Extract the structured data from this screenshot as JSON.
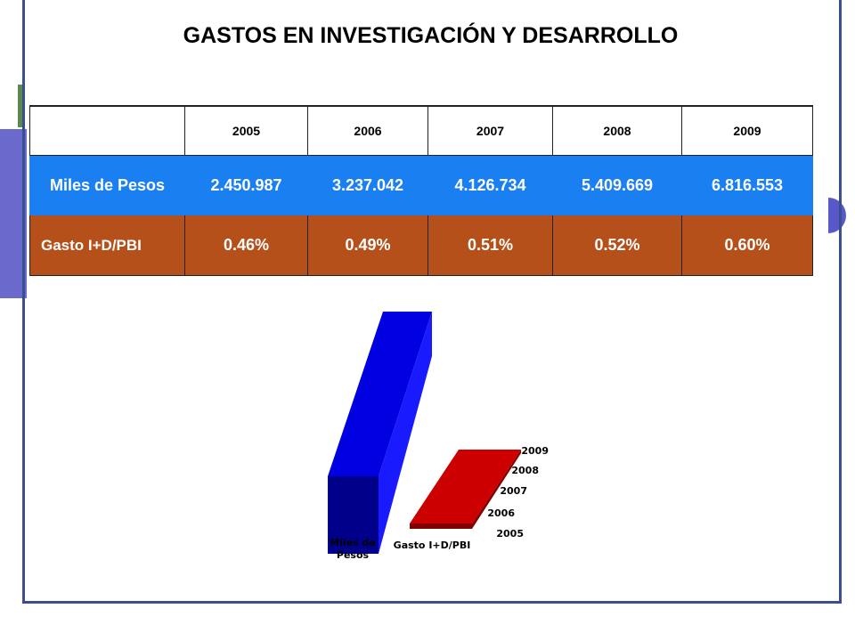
{
  "title": "GASTOS EN INVESTIGACIÓN Y DESARROLLO",
  "table": {
    "header": [
      "2005",
      "2006",
      "2007",
      "2008",
      "2009"
    ],
    "rows": [
      {
        "label": "Miles de Pesos",
        "cells": [
          "2.450.987",
          "3.237.042",
          "4.126.734",
          "5.409.669",
          "6.816.553"
        ]
      },
      {
        "label": "Gasto I+D/PBI",
        "cells": [
          "0.46%",
          "0.49%",
          "0.51%",
          "0.52%",
          "0.60%"
        ]
      }
    ]
  },
  "chart": {
    "series_labels": [
      "Miles de Pesos",
      "Gasto I+D/PBI"
    ],
    "depth_labels": [
      "2005",
      "2006",
      "2007",
      "2008",
      "2009"
    ]
  }
}
